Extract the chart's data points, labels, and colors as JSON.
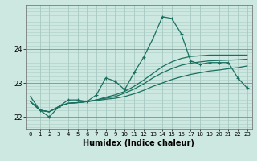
{
  "xlabel": "Humidex (Indice chaleur)",
  "ylabel": "",
  "bg_color": "#cce8e0",
  "grid_color": "#aaccc4",
  "red_line_color": "#dd6666",
  "line_color": "#1a7060",
  "xlim": [
    -0.5,
    23.5
  ],
  "ylim": [
    21.65,
    25.3
  ],
  "yticks": [
    22,
    23,
    24
  ],
  "xticks": [
    0,
    1,
    2,
    3,
    4,
    5,
    6,
    7,
    8,
    9,
    10,
    11,
    12,
    13,
    14,
    15,
    16,
    17,
    18,
    19,
    20,
    21,
    22,
    23
  ],
  "line1": [
    22.6,
    22.2,
    22.0,
    22.3,
    22.5,
    22.5,
    22.45,
    22.65,
    23.15,
    23.05,
    22.8,
    23.3,
    23.75,
    24.3,
    24.95,
    24.9,
    24.45,
    23.65,
    23.55,
    23.6,
    23.6,
    23.6,
    23.15,
    22.85
  ],
  "line2": [
    22.45,
    22.2,
    22.15,
    22.3,
    22.4,
    22.42,
    22.45,
    22.48,
    22.52,
    22.55,
    22.6,
    22.68,
    22.78,
    22.9,
    23.0,
    23.1,
    23.18,
    23.25,
    23.3,
    23.35,
    23.38,
    23.42,
    23.45,
    23.5
  ],
  "line3": [
    22.45,
    22.2,
    22.15,
    22.3,
    22.4,
    22.42,
    22.45,
    22.5,
    22.55,
    22.6,
    22.7,
    22.82,
    22.97,
    23.15,
    23.3,
    23.42,
    23.52,
    23.58,
    23.62,
    23.65,
    23.66,
    23.67,
    23.68,
    23.7
  ],
  "line4": [
    22.45,
    22.2,
    22.15,
    22.3,
    22.4,
    22.42,
    22.45,
    22.5,
    22.58,
    22.65,
    22.75,
    22.9,
    23.08,
    23.28,
    23.48,
    23.62,
    23.72,
    23.78,
    23.8,
    23.82,
    23.82,
    23.82,
    23.82,
    23.82
  ]
}
